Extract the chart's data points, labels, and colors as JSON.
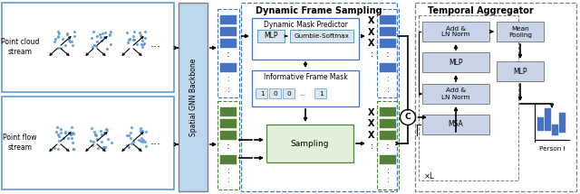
{
  "bg_color": "#ffffff",
  "light_blue_border": "#5b9bd5",
  "blue_box_color": "#4472c4",
  "green_box_color": "#538135",
  "light_green_box": "#e2efda",
  "light_blue_box": "#dce6f1",
  "gray_box": "#c9d4e8",
  "backbone_box": "#bdd7ee",
  "point_cloud_label": "Point cloud\nstream",
  "point_flow_label": "Point flow\nstream",
  "backbone_label": "Spatial GNN Backbone",
  "dfs_title": "Dynamic Frame Sampling",
  "temporal_title": "Temporal Aggregator",
  "dmp_label": "Dynamic Mask Predictor",
  "mlp_label": "MLP",
  "gumbel_label": "Gumble-Softmax",
  "ifm_label": "Informative Frame Mask",
  "sampling_label": "Sampling",
  "add_ln1_label": "Add &\nLN Norm",
  "mlp2_label": "MLP",
  "add_ln2_label": "Add &\nLN Norm",
  "msa_label": "MSA",
  "mean_pool_label": "Mean\nPooling",
  "mlp3_label": "MLP",
  "xl_label": "×L",
  "person_label": "Person i",
  "mask_values": "1   0   0  ...  1",
  "scatter_color": "#5b9bd5"
}
